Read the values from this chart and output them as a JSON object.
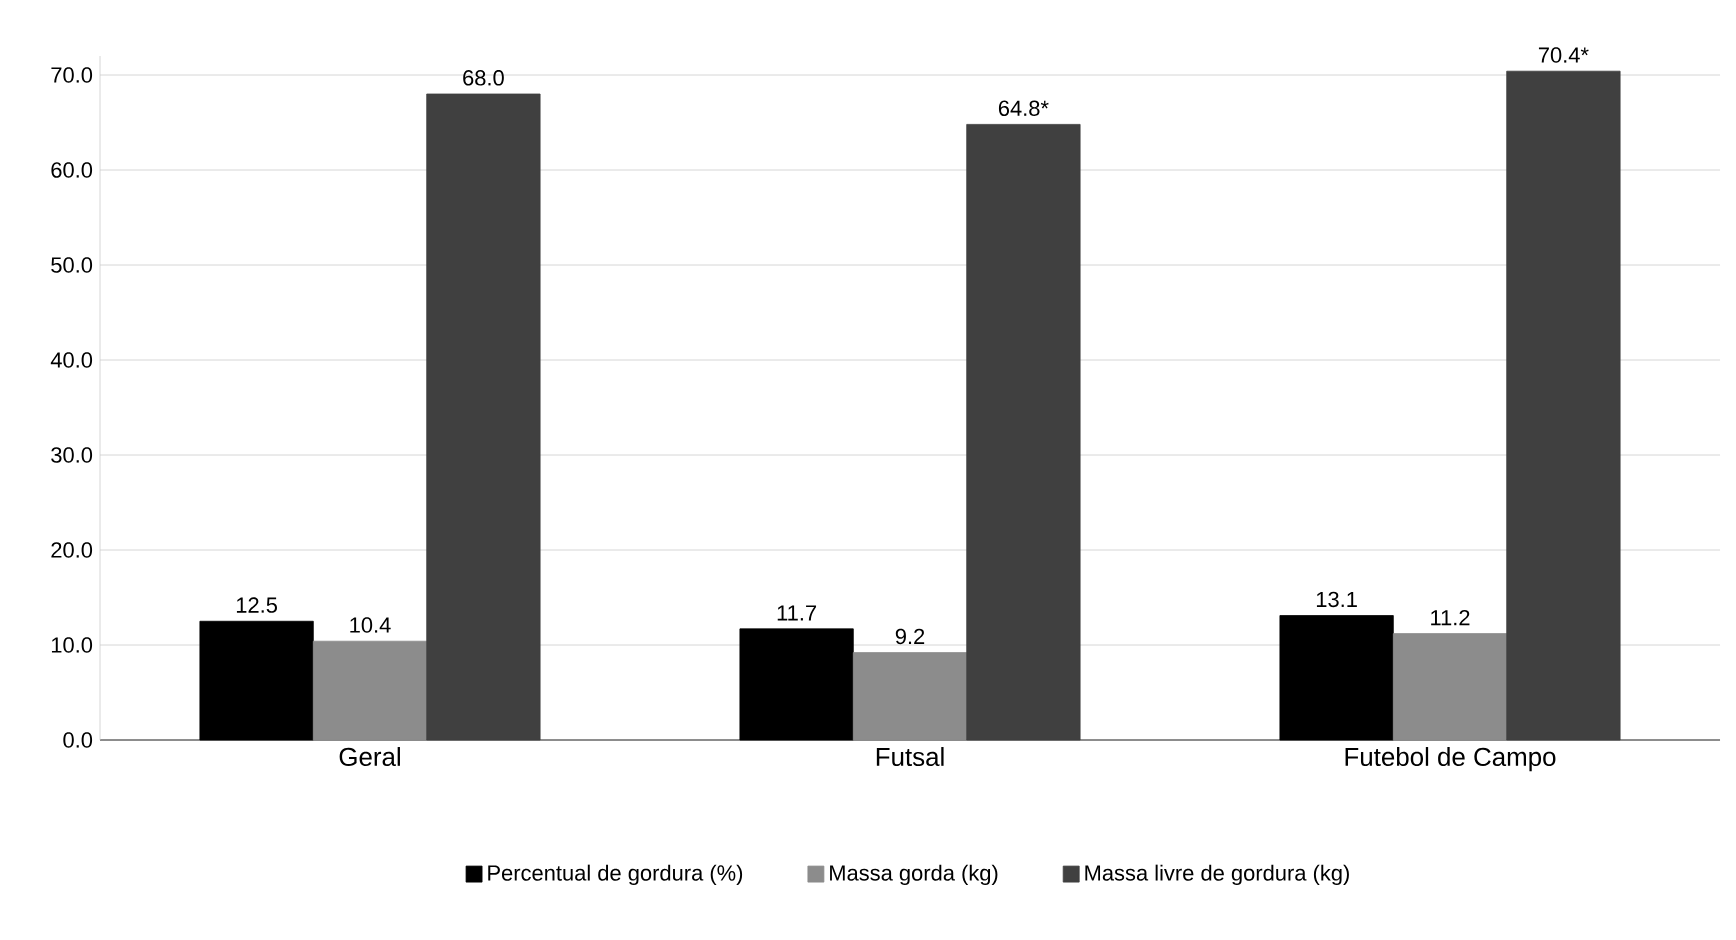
{
  "chart_data": {
    "type": "bar",
    "categories": [
      "Geral",
      "Futsal",
      "Futebol de Campo"
    ],
    "series": [
      {
        "name": "Percentual de gordura (%)",
        "color": "#000000",
        "values": [
          12.5,
          11.7,
          13.1
        ],
        "value_labels": [
          "12.5",
          "11.7",
          "13.1"
        ]
      },
      {
        "name": "Massa gorda (kg)",
        "color": "#8c8c8c",
        "values": [
          10.4,
          9.2,
          11.2
        ],
        "value_labels": [
          "10.4",
          "9.2",
          "11.2"
        ]
      },
      {
        "name": "Massa livre de gordura (kg)",
        "color": "#404040",
        "values": [
          68.0,
          64.8,
          70.4
        ],
        "value_labels": [
          "68.0",
          "64.8*",
          "70.4*"
        ]
      }
    ],
    "ylim": [
      0,
      72
    ],
    "yticks": [
      {
        "value": 0,
        "label": "0.0"
      },
      {
        "value": 10,
        "label": "10.0"
      },
      {
        "value": 20,
        "label": "20.0"
      },
      {
        "value": 30,
        "label": "30.0"
      },
      {
        "value": 40,
        "label": "40.0"
      },
      {
        "value": 50,
        "label": "50.0"
      },
      {
        "value": 60,
        "label": "60.0"
      },
      {
        "value": 70,
        "label": "70.0"
      }
    ],
    "grid": "y",
    "legend": "bottom"
  }
}
